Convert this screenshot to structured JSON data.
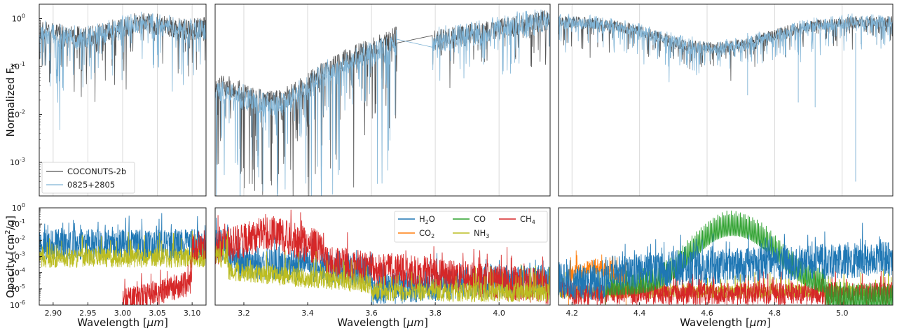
{
  "chart_data": [
    {
      "type": "line",
      "panel": "top-left",
      "xlim": [
        2.88,
        3.12
      ],
      "ylim_log10": [
        -3.7,
        0.3
      ],
      "yscale": "log",
      "ylabel": "Normalized F",
      "ylabel_sub": "λ",
      "x_gridlines": [
        2.9,
        2.95,
        3.0,
        3.05,
        3.1
      ],
      "y_ticks": [
        {
          "exp": "0",
          "v": 0
        },
        {
          "exp": "-1",
          "v": -1
        },
        {
          "exp": "-2",
          "v": -2
        },
        {
          "exp": "-3",
          "v": -3
        }
      ],
      "legend": {
        "position": "lower-left",
        "entries": [
          {
            "label": "COCONUTS-2b",
            "color": "#555555"
          },
          {
            "label": "0825+2805",
            "color": "#7fb3d5"
          }
        ]
      },
      "series": [
        {
          "name": "COCONUTS-2b",
          "color": "#555555",
          "base": -0.28,
          "slope": 0.15,
          "noise": 0.28,
          "dips": 0.45,
          "seed": 3
        },
        {
          "name": "0825+2805",
          "color": "#7fb3d5",
          "base": -0.3,
          "slope": 0.15,
          "noise": 0.32,
          "dips": 0.6,
          "seed": 7
        }
      ]
    },
    {
      "type": "line",
      "panel": "top-middle",
      "xlim": [
        3.11,
        4.16
      ],
      "ylim_log10": [
        -3.7,
        0.3
      ],
      "yscale": "log",
      "x_gridlines": [
        3.2,
        3.4,
        3.6,
        3.8,
        4.0
      ],
      "gap": [
        3.68,
        3.79
      ],
      "series": [
        {
          "name": "COCONUTS-2b",
          "color": "#555555",
          "seed": 11
        },
        {
          "name": "0825+2805",
          "color": "#7fb3d5",
          "seed": 19
        }
      ]
    },
    {
      "type": "line",
      "panel": "top-right",
      "xlim": [
        4.16,
        5.15
      ],
      "ylim_log10": [
        -3.7,
        0.3
      ],
      "yscale": "log",
      "x_gridlines": [
        4.2,
        4.4,
        4.6,
        4.8,
        5.0
      ],
      "series": [
        {
          "name": "COCONUTS-2b",
          "color": "#555555",
          "seed": 23
        },
        {
          "name": "0825+2805",
          "color": "#7fb3d5",
          "seed": 29
        }
      ]
    },
    {
      "type": "line",
      "panel": "bottom-left",
      "xlim": [
        2.88,
        3.12
      ],
      "ylim_log10": [
        -6,
        0
      ],
      "yscale": "log",
      "xlabel": "Wavelength [",
      "xlabel_unit": "μm",
      "xlabel_end": "]",
      "ylabel": "Opacity [cm",
      "ylabel_sup": "2",
      "ylabel_end": "/g]",
      "x_ticks": [
        "2.90",
        "2.95",
        "3.00",
        "3.05",
        "3.10"
      ],
      "x_tick_values": [
        2.9,
        2.95,
        3.0,
        3.05,
        3.1
      ],
      "y_ticks": [
        {
          "exp": "0",
          "v": 0
        },
        {
          "exp": "-1",
          "v": -1
        },
        {
          "exp": "-2",
          "v": -2
        },
        {
          "exp": "-3",
          "v": -3
        },
        {
          "exp": "-4",
          "v": -4
        },
        {
          "exp": "-5",
          "v": -5
        },
        {
          "exp": "-6",
          "v": -6
        }
      ],
      "series": [
        {
          "name": "H2O",
          "color": "#1f77b4"
        },
        {
          "name": "NH3",
          "color": "#bcbd22"
        },
        {
          "name": "CH4",
          "color": "#d62728"
        }
      ]
    },
    {
      "type": "line",
      "panel": "bottom-middle",
      "xlim": [
        3.11,
        4.16
      ],
      "ylim_log10": [
        -6,
        0
      ],
      "yscale": "log",
      "xlabel": "Wavelength [",
      "xlabel_unit": "μm",
      "xlabel_end": "]",
      "x_ticks": [
        "3.2",
        "3.4",
        "3.6",
        "3.8",
        "4.0"
      ],
      "x_tick_values": [
        3.2,
        3.4,
        3.6,
        3.8,
        4.0
      ],
      "legend": {
        "position": "top-right",
        "entries": [
          {
            "label": "H",
            "sub": "2",
            "suffix": "O",
            "color": "#1f77b4"
          },
          {
            "label": "CO",
            "sub": "",
            "suffix": "",
            "color": "#2ca02c"
          },
          {
            "label": "CH",
            "sub": "4",
            "suffix": "",
            "color": "#d62728"
          },
          {
            "label": "CO",
            "sub": "2",
            "suffix": "",
            "color": "#ff7f0e"
          },
          {
            "label": "NH",
            "sub": "3",
            "suffix": "",
            "color": "#bcbd22"
          }
        ]
      },
      "series": [
        {
          "name": "H2O",
          "color": "#1f77b4"
        },
        {
          "name": "NH3",
          "color": "#bcbd22"
        },
        {
          "name": "CH4",
          "color": "#d62728"
        }
      ]
    },
    {
      "type": "line",
      "panel": "bottom-right",
      "xlim": [
        4.16,
        5.15
      ],
      "ylim_log10": [
        -6,
        0
      ],
      "yscale": "log",
      "xlabel": "Wavelength [",
      "xlabel_unit": "μm",
      "xlabel_end": "]",
      "x_ticks": [
        "4.2",
        "4.4",
        "4.6",
        "4.8",
        "5.0"
      ],
      "x_tick_values": [
        4.2,
        4.4,
        4.6,
        4.8,
        5.0
      ],
      "series": [
        {
          "name": "H2O",
          "color": "#1f77b4"
        },
        {
          "name": "CO",
          "color": "#2ca02c"
        },
        {
          "name": "CO2",
          "color": "#ff7f0e"
        },
        {
          "name": "NH3",
          "color": "#bcbd22"
        },
        {
          "name": "CH4",
          "color": "#d62728"
        }
      ]
    }
  ]
}
